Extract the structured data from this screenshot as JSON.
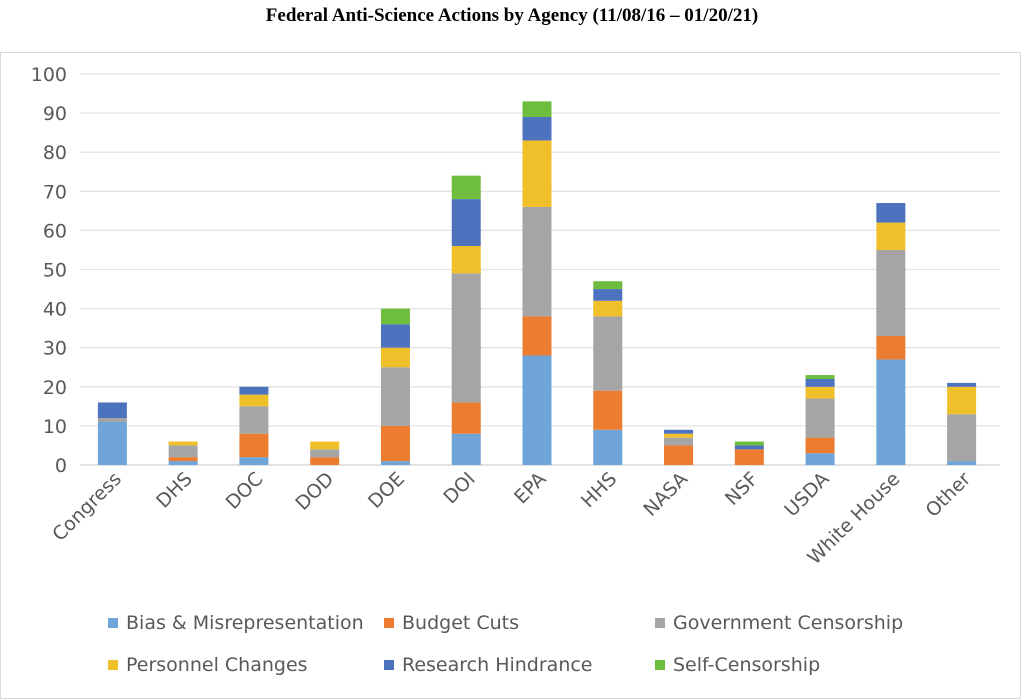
{
  "chart_data": {
    "type": "bar",
    "stacked": true,
    "title": "Federal Anti-Science Actions by Agency (11/08/16 – 01/20/21)",
    "xlabel": "",
    "ylabel": "",
    "ylim": [
      0,
      100
    ],
    "yticks": [
      0,
      10,
      20,
      30,
      40,
      50,
      60,
      70,
      80,
      90,
      100
    ],
    "grid": true,
    "legend_position": "bottom",
    "categories": [
      "Congress",
      "DHS",
      "DOC",
      "DOD",
      "DOE",
      "DOI",
      "EPA",
      "HHS",
      "NASA",
      "NSF",
      "USDA",
      "White House",
      "Other"
    ],
    "series": [
      {
        "name": "Bias & Misrepresentation",
        "color": "#6fa4d8",
        "values": [
          11,
          1,
          2,
          0,
          1,
          8,
          28,
          9,
          0,
          0,
          3,
          27,
          1
        ]
      },
      {
        "name": "Budget Cuts",
        "color": "#ec7c30",
        "values": [
          0,
          1,
          6,
          2,
          9,
          8,
          10,
          10,
          5,
          4,
          4,
          6,
          0
        ]
      },
      {
        "name": "Government Censorship",
        "color": "#a5a5a5",
        "values": [
          1,
          3,
          7,
          2,
          15,
          33,
          28,
          19,
          2,
          0,
          10,
          22,
          12
        ]
      },
      {
        "name": "Personnel Changes",
        "color": "#f0c02a",
        "values": [
          0,
          1,
          3,
          2,
          5,
          7,
          17,
          4,
          1,
          0,
          3,
          7,
          7
        ]
      },
      {
        "name": "Research Hindrance",
        "color": "#4e73be",
        "values": [
          4,
          0,
          2,
          0,
          6,
          12,
          6,
          3,
          1,
          1,
          2,
          5,
          1
        ]
      },
      {
        "name": "Self-Censorship",
        "color": "#6fbd3f",
        "values": [
          0,
          0,
          0,
          0,
          4,
          6,
          4,
          2,
          0,
          1,
          1,
          0,
          0
        ]
      }
    ]
  }
}
